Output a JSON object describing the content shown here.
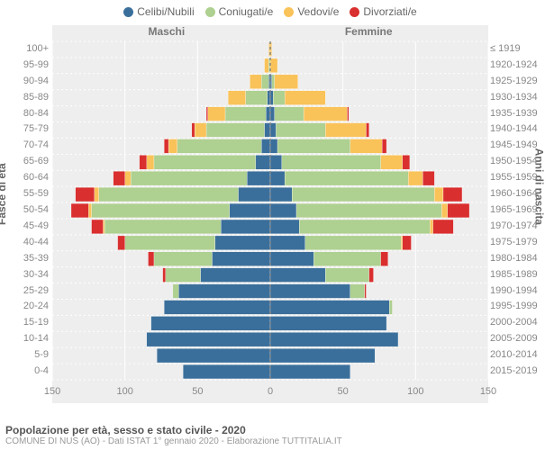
{
  "type": "population-pyramid",
  "background_color": "#ffffff",
  "plot_bg": "#eeeeee",
  "grid_color": "#ffffff",
  "legend": {
    "items": [
      {
        "label": "Celibi/Nubili",
        "color": "#3b6f9b"
      },
      {
        "label": "Coniugati/e",
        "color": "#aed090"
      },
      {
        "label": "Vedovi/e",
        "color": "#f9c35a"
      },
      {
        "label": "Divorziati/e",
        "color": "#d92f2f"
      }
    ],
    "fontsize": 12
  },
  "columns": {
    "male": "Maschi",
    "female": "Femmine",
    "fontsize": 12
  },
  "y_axis_left": {
    "title": "Fasce di età",
    "labels": [
      "0-4",
      "5-9",
      "10-14",
      "15-19",
      "20-24",
      "25-29",
      "30-34",
      "35-39",
      "40-44",
      "45-49",
      "50-54",
      "55-59",
      "60-64",
      "65-69",
      "70-74",
      "75-79",
      "80-84",
      "85-89",
      "90-94",
      "95-99",
      "100+"
    ]
  },
  "y_axis_right": {
    "title": "Anni di nascita",
    "labels": [
      "2015-2019",
      "2010-2014",
      "2005-2009",
      "2000-2004",
      "1995-1999",
      "1990-1994",
      "1985-1989",
      "1980-1984",
      "1975-1979",
      "1970-1974",
      "1965-1969",
      "1960-1964",
      "1955-1959",
      "1950-1954",
      "1945-1949",
      "1940-1944",
      "1935-1939",
      "1930-1934",
      "1925-1929",
      "1920-1924",
      "≤ 1919"
    ]
  },
  "x_axis": {
    "ticks": [
      -150,
      -100,
      -50,
      0,
      50,
      100,
      150
    ],
    "tick_labels": [
      "150",
      "100",
      "50",
      "0",
      "50",
      "100",
      "150"
    ],
    "fontsize": 11
  },
  "colors": {
    "single": "#3b6f9b",
    "married": "#aed090",
    "widowed": "#f9c35a",
    "divorced": "#d92f2f"
  },
  "bar_gap": 0.12,
  "series": {
    "male": [
      {
        "single": 60,
        "married": 0,
        "widowed": 0,
        "divorced": 0
      },
      {
        "single": 78,
        "married": 0,
        "widowed": 0,
        "divorced": 0
      },
      {
        "single": 85,
        "married": 0,
        "widowed": 0,
        "divorced": 0
      },
      {
        "single": 82,
        "married": 0,
        "widowed": 0,
        "divorced": 0
      },
      {
        "single": 73,
        "married": 0,
        "widowed": 0,
        "divorced": 0
      },
      {
        "single": 63,
        "married": 4,
        "widowed": 0,
        "divorced": 0
      },
      {
        "single": 48,
        "married": 24,
        "widowed": 0,
        "divorced": 2
      },
      {
        "single": 40,
        "married": 40,
        "widowed": 0,
        "divorced": 4
      },
      {
        "single": 38,
        "married": 62,
        "widowed": 0,
        "divorced": 5
      },
      {
        "single": 34,
        "married": 80,
        "widowed": 1,
        "divorced": 8
      },
      {
        "single": 28,
        "married": 95,
        "widowed": 2,
        "divorced": 12
      },
      {
        "single": 22,
        "married": 96,
        "widowed": 3,
        "divorced": 13
      },
      {
        "single": 16,
        "married": 80,
        "widowed": 4,
        "divorced": 8
      },
      {
        "single": 10,
        "married": 70,
        "widowed": 5,
        "divorced": 5
      },
      {
        "single": 6,
        "married": 58,
        "widowed": 6,
        "divorced": 3
      },
      {
        "single": 4,
        "married": 40,
        "widowed": 8,
        "divorced": 2
      },
      {
        "single": 3,
        "married": 28,
        "widowed": 12,
        "divorced": 1
      },
      {
        "single": 2,
        "married": 15,
        "widowed": 12,
        "divorced": 0
      },
      {
        "single": 1,
        "married": 5,
        "widowed": 8,
        "divorced": 0
      },
      {
        "single": 0,
        "married": 1,
        "widowed": 3,
        "divorced": 0
      },
      {
        "single": 0,
        "married": 0,
        "widowed": 1,
        "divorced": 0
      }
    ],
    "female": [
      {
        "single": 55,
        "married": 0,
        "widowed": 0,
        "divorced": 0
      },
      {
        "single": 72,
        "married": 0,
        "widowed": 0,
        "divorced": 0
      },
      {
        "single": 88,
        "married": 0,
        "widowed": 0,
        "divorced": 0
      },
      {
        "single": 80,
        "married": 0,
        "widowed": 0,
        "divorced": 0
      },
      {
        "single": 82,
        "married": 2,
        "widowed": 0,
        "divorced": 0
      },
      {
        "single": 55,
        "married": 10,
        "widowed": 0,
        "divorced": 1
      },
      {
        "single": 38,
        "married": 30,
        "widowed": 0,
        "divorced": 3
      },
      {
        "single": 30,
        "married": 46,
        "widowed": 0,
        "divorced": 5
      },
      {
        "single": 24,
        "married": 66,
        "widowed": 1,
        "divorced": 6
      },
      {
        "single": 20,
        "married": 90,
        "widowed": 2,
        "divorced": 14
      },
      {
        "single": 18,
        "married": 100,
        "widowed": 4,
        "divorced": 15
      },
      {
        "single": 15,
        "married": 98,
        "widowed": 6,
        "divorced": 13
      },
      {
        "single": 10,
        "married": 85,
        "widowed": 10,
        "divorced": 8
      },
      {
        "single": 8,
        "married": 68,
        "widowed": 15,
        "divorced": 5
      },
      {
        "single": 5,
        "married": 50,
        "widowed": 22,
        "divorced": 3
      },
      {
        "single": 4,
        "married": 34,
        "widowed": 28,
        "divorced": 2
      },
      {
        "single": 3,
        "married": 20,
        "widowed": 30,
        "divorced": 1
      },
      {
        "single": 2,
        "married": 8,
        "widowed": 28,
        "divorced": 0
      },
      {
        "single": 1,
        "married": 2,
        "widowed": 16,
        "divorced": 0
      },
      {
        "single": 0,
        "married": 0,
        "widowed": 5,
        "divorced": 0
      },
      {
        "single": 0,
        "married": 0,
        "widowed": 1,
        "divorced": 0
      }
    ]
  },
  "caption": {
    "title": "Popolazione per età, sesso e stato civile - 2020",
    "sub": "COMUNE DI NUS (AO) - Dati ISTAT 1° gennaio 2020 - Elaborazione TUTTITALIA.IT"
  }
}
